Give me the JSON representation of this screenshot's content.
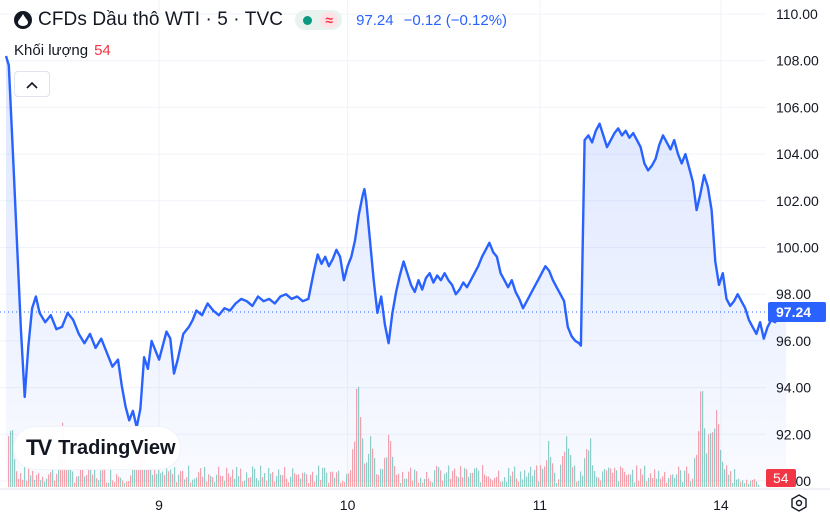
{
  "header": {
    "title": "CFDs Dầu thô WTI · 5 · TVC",
    "price": "97.24",
    "change": "−0.12 (−0.12%)",
    "volume_label": "Khối lượng",
    "volume_value": "54",
    "collapse_icon": "chevron-up-icon"
  },
  "branding": {
    "logo_text": "TradingView",
    "logo_mark": "TV"
  },
  "colors": {
    "line": "#2962ff",
    "fill": "#e3ebfd",
    "up_volume": "#089981",
    "down_volume": "#f23645",
    "price_tag": "#2962ff",
    "volume_tag": "#f23645"
  },
  "chart_data": {
    "type": "area",
    "title": "CFDs Dầu thô WTI · 5 · TVC",
    "xlabel": "",
    "ylabel": "",
    "x_ticks": [
      "9",
      "10",
      "11",
      "14"
    ],
    "x_range": [
      0,
      4
    ],
    "y_ticks": [
      "110.00",
      "108.00",
      "106.00",
      "104.00",
      "102.00",
      "100.00",
      "98.00",
      "96.00",
      "94.00",
      "92.00",
      "90.00"
    ],
    "ylim": [
      90,
      110
    ],
    "grid": true,
    "current_price": 97.24,
    "current_price_label": "97.24",
    "volume_label_value": "54",
    "series": [
      {
        "values": [
          [
            0.0,
            108.2
          ],
          [
            0.015,
            107.8
          ],
          [
            0.04,
            103.5
          ],
          [
            0.08,
            96.5
          ],
          [
            0.1,
            93.6
          ],
          [
            0.12,
            95.8
          ],
          [
            0.14,
            97.4
          ],
          [
            0.16,
            97.9
          ],
          [
            0.18,
            97.2
          ],
          [
            0.21,
            96.8
          ],
          [
            0.24,
            97.1
          ],
          [
            0.27,
            96.5
          ],
          [
            0.3,
            96.6
          ],
          [
            0.33,
            97.2
          ],
          [
            0.36,
            96.9
          ],
          [
            0.39,
            96.3
          ],
          [
            0.42,
            95.9
          ],
          [
            0.45,
            96.3
          ],
          [
            0.48,
            95.7
          ],
          [
            0.51,
            96.1
          ],
          [
            0.54,
            95.5
          ],
          [
            0.57,
            94.9
          ],
          [
            0.6,
            95.2
          ],
          [
            0.62,
            94.1
          ],
          [
            0.64,
            93.2
          ],
          [
            0.66,
            92.6
          ],
          [
            0.68,
            93.0
          ],
          [
            0.7,
            92.3
          ],
          [
            0.72,
            93.1
          ],
          [
            0.74,
            95.3
          ],
          [
            0.76,
            94.8
          ],
          [
            0.78,
            96.0
          ],
          [
            0.8,
            95.6
          ],
          [
            0.82,
            95.2
          ],
          [
            0.84,
            95.8
          ],
          [
            0.86,
            96.4
          ],
          [
            0.88,
            96.1
          ],
          [
            0.9,
            94.6
          ],
          [
            0.92,
            95.2
          ],
          [
            0.95,
            96.3
          ],
          [
            0.98,
            96.6
          ],
          [
            1.0,
            96.9
          ],
          [
            1.02,
            97.3
          ],
          [
            1.05,
            97.1
          ],
          [
            1.08,
            97.6
          ],
          [
            1.11,
            97.3
          ],
          [
            1.14,
            97.1
          ],
          [
            1.17,
            97.4
          ],
          [
            1.2,
            97.3
          ],
          [
            1.23,
            97.6
          ],
          [
            1.26,
            97.8
          ],
          [
            1.29,
            97.7
          ],
          [
            1.32,
            97.5
          ],
          [
            1.35,
            97.9
          ],
          [
            1.38,
            97.7
          ],
          [
            1.41,
            97.8
          ],
          [
            1.44,
            97.6
          ],
          [
            1.47,
            97.9
          ],
          [
            1.5,
            98.0
          ],
          [
            1.53,
            97.8
          ],
          [
            1.56,
            97.9
          ],
          [
            1.59,
            97.7
          ],
          [
            1.62,
            97.8
          ],
          [
            1.65,
            99.0
          ],
          [
            1.67,
            99.7
          ],
          [
            1.69,
            99.3
          ],
          [
            1.71,
            99.6
          ],
          [
            1.73,
            99.2
          ],
          [
            1.75,
            99.5
          ],
          [
            1.77,
            99.9
          ],
          [
            1.79,
            99.6
          ],
          [
            1.81,
            98.6
          ],
          [
            1.83,
            99.2
          ],
          [
            1.85,
            99.6
          ],
          [
            1.87,
            100.3
          ],
          [
            1.89,
            101.4
          ],
          [
            1.91,
            102.2
          ],
          [
            1.92,
            102.5
          ],
          [
            1.93,
            102.0
          ],
          [
            1.95,
            100.3
          ],
          [
            1.97,
            98.6
          ],
          [
            1.99,
            97.2
          ],
          [
            2.01,
            97.9
          ],
          [
            2.03,
            96.7
          ],
          [
            2.05,
            95.9
          ],
          [
            2.07,
            97.2
          ],
          [
            2.09,
            98.1
          ],
          [
            2.11,
            98.8
          ],
          [
            2.13,
            99.4
          ],
          [
            2.15,
            98.9
          ],
          [
            2.17,
            98.4
          ],
          [
            2.19,
            98.1
          ],
          [
            2.21,
            98.6
          ],
          [
            2.23,
            98.2
          ],
          [
            2.25,
            98.7
          ],
          [
            2.27,
            98.9
          ],
          [
            2.29,
            98.5
          ],
          [
            2.31,
            98.8
          ],
          [
            2.33,
            98.6
          ],
          [
            2.35,
            98.9
          ],
          [
            2.37,
            98.6
          ],
          [
            2.39,
            98.4
          ],
          [
            2.41,
            98.0
          ],
          [
            2.43,
            98.2
          ],
          [
            2.45,
            98.5
          ],
          [
            2.47,
            98.3
          ],
          [
            2.49,
            98.6
          ],
          [
            2.51,
            98.9
          ],
          [
            2.53,
            99.2
          ],
          [
            2.55,
            99.6
          ],
          [
            2.57,
            99.9
          ],
          [
            2.59,
            100.2
          ],
          [
            2.61,
            99.8
          ],
          [
            2.63,
            99.6
          ],
          [
            2.65,
            98.9
          ],
          [
            2.67,
            98.6
          ],
          [
            2.69,
            98.3
          ],
          [
            2.71,
            98.6
          ],
          [
            2.73,
            98.1
          ],
          [
            2.75,
            97.8
          ],
          [
            2.77,
            97.4
          ],
          [
            2.79,
            97.7
          ],
          [
            2.81,
            98.0
          ],
          [
            2.83,
            98.3
          ],
          [
            2.85,
            98.6
          ],
          [
            2.87,
            98.9
          ],
          [
            2.89,
            99.2
          ],
          [
            2.91,
            99.0
          ],
          [
            2.93,
            98.6
          ],
          [
            2.95,
            98.3
          ],
          [
            2.97,
            98.0
          ],
          [
            2.99,
            97.7
          ],
          [
            3.01,
            96.6
          ],
          [
            3.03,
            96.2
          ],
          [
            3.05,
            96.0
          ],
          [
            3.07,
            95.9
          ],
          [
            3.08,
            95.8
          ],
          [
            3.1,
            104.6
          ],
          [
            3.12,
            104.8
          ],
          [
            3.14,
            104.5
          ],
          [
            3.16,
            105.0
          ],
          [
            3.18,
            105.3
          ],
          [
            3.2,
            104.8
          ],
          [
            3.22,
            104.3
          ],
          [
            3.24,
            104.6
          ],
          [
            3.26,
            104.9
          ],
          [
            3.28,
            105.1
          ],
          [
            3.3,
            104.8
          ],
          [
            3.32,
            105.0
          ],
          [
            3.34,
            104.7
          ],
          [
            3.36,
            104.9
          ],
          [
            3.38,
            104.6
          ],
          [
            3.4,
            104.3
          ],
          [
            3.42,
            103.6
          ],
          [
            3.44,
            103.3
          ],
          [
            3.46,
            103.5
          ],
          [
            3.48,
            103.8
          ],
          [
            3.5,
            104.4
          ],
          [
            3.52,
            104.8
          ],
          [
            3.54,
            104.5
          ],
          [
            3.56,
            104.2
          ],
          [
            3.58,
            104.6
          ],
          [
            3.6,
            104.0
          ],
          [
            3.62,
            103.6
          ],
          [
            3.64,
            104.0
          ],
          [
            3.66,
            103.4
          ],
          [
            3.68,
            102.8
          ],
          [
            3.7,
            101.6
          ],
          [
            3.72,
            102.3
          ],
          [
            3.74,
            103.1
          ],
          [
            3.76,
            102.6
          ],
          [
            3.78,
            101.6
          ],
          [
            3.8,
            99.4
          ],
          [
            3.82,
            98.4
          ],
          [
            3.84,
            98.9
          ],
          [
            3.86,
            97.8
          ],
          [
            3.88,
            97.5
          ],
          [
            3.9,
            97.7
          ],
          [
            3.92,
            98.0
          ],
          [
            3.94,
            97.7
          ],
          [
            3.96,
            97.4
          ],
          [
            3.98,
            96.9
          ],
          [
            4.0,
            96.6
          ],
          [
            4.02,
            96.3
          ],
          [
            4.04,
            96.8
          ],
          [
            4.06,
            96.1
          ],
          [
            4.08,
            96.6
          ],
          [
            4.1,
            96.9
          ],
          [
            4.12,
            96.8
          ],
          [
            4.14,
            97.0
          ],
          [
            4.16,
            97.1
          ],
          [
            4.18,
            97.24
          ]
        ]
      }
    ]
  }
}
